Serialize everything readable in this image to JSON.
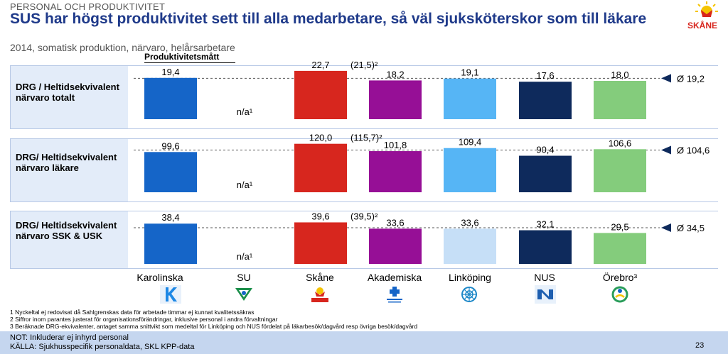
{
  "header": {
    "section": "PERSONAL OCH PRODUKTIVITET",
    "title": "SUS har högst produktivitet sett till alla medarbetare, så väl sjuksköterskor som till läkare",
    "subtitle": "2014, somatisk produktion, närvaro, helårsarbetare",
    "metric_header": "Produktivitetsmått",
    "logo_text": "SKÅNE"
  },
  "chart_data": [
    {
      "type": "bar",
      "label": "DRG / Heltidsekvivalent närvaro totalt",
      "categories": [
        "Karolinska",
        "SU",
        "Skåne",
        "Akademiska",
        "Linköping",
        "NUS",
        "Örebro"
      ],
      "values": [
        19.4,
        null,
        22.7,
        18.2,
        19.1,
        17.6,
        18.0
      ],
      "value_labels": [
        "19,4",
        "n/a¹",
        "22,7",
        "18,2",
        "19,1",
        "17,6",
        "18,0"
      ],
      "extra_label": "(21,5)²",
      "average": 19.2,
      "average_label": "Ø 19,2",
      "ylim": [
        0,
        26
      ]
    },
    {
      "type": "bar",
      "label": "DRG/ Heltidsekvivalent närvaro läkare",
      "categories": [
        "Karolinska",
        "SU",
        "Skåne",
        "Akademiska",
        "Linköping",
        "NUS",
        "Örebro"
      ],
      "values": [
        99.6,
        null,
        120.0,
        101.8,
        109.4,
        90.4,
        106.6
      ],
      "value_labels": [
        "99,6",
        "n/a¹",
        "120,0",
        "101,8",
        "109,4",
        "90,4",
        "106,6"
      ],
      "extra_label": "(115,7)²",
      "average": 104.6,
      "average_label": "Ø 104,6",
      "ylim": [
        0,
        137
      ]
    },
    {
      "type": "bar",
      "label": "DRG/ Heltidsekvivalent närvaro SSK & USK",
      "categories": [
        "Karolinska",
        "SU",
        "Skåne",
        "Akademiska",
        "Linköping",
        "NUS",
        "Örebro"
      ],
      "values": [
        38.4,
        null,
        39.6,
        33.6,
        33.6,
        32.1,
        29.5
      ],
      "value_labels": [
        "38,4",
        "n/a¹",
        "39,6",
        "33,6",
        "33,6",
        "32,1",
        "29,5"
      ],
      "extra_label": "(39,5)²",
      "average": 34.5,
      "average_label": "Ø 34,5",
      "ylim": [
        0,
        46
      ]
    }
  ],
  "colors": [
    "#1565c8",
    "#ffffff",
    "#d7261e",
    "#960f96",
    "#56b5f5",
    "#0e2a5c",
    "#84cc7c"
  ],
  "colors_row3_linkoping": "#c6dff7",
  "companies": {
    "karolinska": "Karolinska",
    "su": "SU",
    "skane": "Skåne",
    "akademiska": "Akademiska",
    "linkoping": "Linköping",
    "nus": "NUS",
    "orebro": "Örebro³"
  },
  "footnotes": [
    "1 Nyckeltal ej redovisat då Sahlgrenskas data för arbetade timmar ej kunnat kvalitetssäkras",
    "2 Siffror inom parantes justerat för organisationsförändringar, inklusive personal i andra förvaltningar",
    "3 Beräknade DRG-ekvivalenter, antaget samma snittvikt som medeltal för Linköping och NUS fördelat på läkarbesök/dagvård resp övriga besök/dagvård"
  ],
  "footer": {
    "note": "NOT: Inkluderar ej inhyrd personal",
    "source": "KÄLLA: Sjukhusspecifik personaldata, SKL KPP-data",
    "page": "23"
  }
}
